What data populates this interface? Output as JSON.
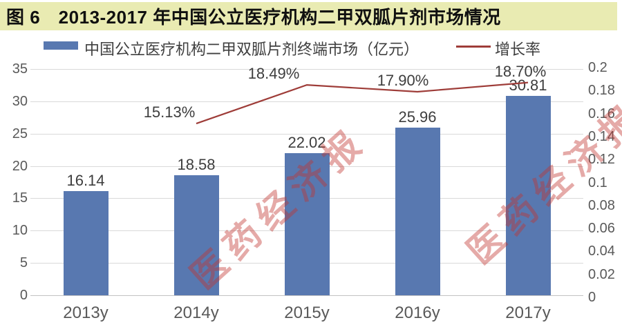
{
  "header": {
    "title": "图 6　2013-2017 年中国公立医疗机构二甲双胍片剂市场情况"
  },
  "legend": {
    "market_label": "中国公立医疗机构二甲双胍片剂终端市场（亿元）",
    "growth_label": "增长率"
  },
  "watermark": {
    "text": "医药经济报"
  },
  "colors": {
    "title_background": "#e9ebb2",
    "bar": "#5878b0",
    "line": "#9e3c38",
    "gridline": "#d9d9d9",
    "axis_text": "#595959",
    "data_label_text": "#3d3d3d",
    "watermark_red": "rgba(193,52,48,0.42)"
  },
  "chart_data": {
    "type": "bar",
    "title": "图 6　2013-2017 年中国公立医疗机构二甲双胍片剂市场情况",
    "categories": [
      "2013y",
      "2014y",
      "2015y",
      "2016y",
      "2017y"
    ],
    "series": [
      {
        "name": "中国公立医疗机构二甲双胍片剂终端市场（亿元）",
        "type": "bar",
        "axis": "left",
        "color": "#5878b0",
        "values": [
          16.14,
          18.58,
          22.02,
          25.96,
          30.81
        ],
        "labels": [
          "16.14",
          "18.58",
          "22.02",
          "25.96",
          "30.81"
        ]
      },
      {
        "name": "增长率",
        "type": "line",
        "axis": "right",
        "color": "#9e3c38",
        "values": [
          null,
          0.1513,
          0.1849,
          0.179,
          0.187
        ],
        "labels": [
          "",
          "15.13%",
          "18.49%",
          "17.90%",
          "18.70%"
        ]
      }
    ],
    "left_axis": {
      "min": 0,
      "max": 35,
      "step": 5,
      "ticks": [
        "0",
        "5",
        "10",
        "15",
        "20",
        "25",
        "30",
        "35"
      ]
    },
    "right_axis": {
      "min": 0,
      "max": 0.2,
      "step": 0.02,
      "ticks": [
        "0",
        "0.02",
        "0.04",
        "0.06",
        "0.08",
        "0.1",
        "0.12",
        "0.14",
        "0.16",
        "0.18",
        "0.2"
      ]
    },
    "grid": true,
    "legend_position": "top"
  }
}
